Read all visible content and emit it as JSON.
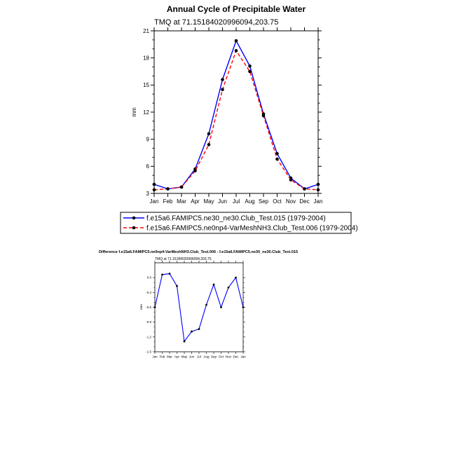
{
  "chart_data": [
    {
      "type": "line",
      "title": "Annual Cycle of Precipitable Water",
      "subtitle": "TMQ at 71.15184020996094,203.75",
      "ylabel": "mm",
      "xlabel": "",
      "categories": [
        "Jan",
        "Feb",
        "Mar",
        "Apr",
        "May",
        "Jun",
        "Jul",
        "Aug",
        "Sep",
        "Oct",
        "Nov",
        "Dec",
        "Jan"
      ],
      "ylim": [
        3,
        21
      ],
      "yticks": [
        3,
        6,
        9,
        12,
        15,
        18,
        21
      ],
      "ytick_labels": [
        "3",
        "6",
        "9",
        "12",
        "15",
        "18",
        "21"
      ],
      "grid": false,
      "legend_position": "bottom",
      "series": [
        {
          "name": "f.e15a6.FAMIPC5.ne30_ne30.Club_Test.015 (1979-2004)",
          "color": "#0000ff",
          "dash": "solid",
          "values": [
            4.0,
            3.5,
            3.7,
            5.7,
            9.6,
            15.6,
            19.9,
            17.1,
            11.8,
            7.4,
            4.7,
            3.5,
            4.0
          ]
        },
        {
          "name": "f.e15a6.FAMIPC5.ne0np4-VarMeshNH3.Club_Test.006 (1979-2004)",
          "color": "#ff0000",
          "dash": "dashed",
          "values": [
            3.4,
            3.5,
            3.7,
            5.5,
            8.4,
            14.5,
            18.8,
            16.5,
            11.6,
            6.8,
            4.5,
            3.5,
            3.4
          ]
        }
      ]
    },
    {
      "type": "line",
      "title": "Difference f.e15a6.FAMIPC5.ne0np4-VarMeshNH3.Club_Test.006 - f.e15a6.FAMIPC5.ne30_ne30.Club_Test.015",
      "subtitle": "TMQ at 71.15184020996094,203.75",
      "ylabel": "mm",
      "xlabel": "",
      "categories": [
        "Jan",
        "Feb",
        "Mar",
        "Apr",
        "May",
        "Jun",
        "Jul",
        "Aug",
        "Sep",
        "Oct",
        "Nov",
        "Dec",
        "Jan"
      ],
      "ylim": [
        -1.5,
        0.3
      ],
      "yticks": [
        -1.5,
        -1.2,
        -0.9,
        -0.6,
        -0.3,
        0.0
      ],
      "ytick_labels": [
        "-1.5",
        "-1.2",
        "-0.9",
        "-0.6",
        "-0.3",
        "0.0"
      ],
      "grid": false,
      "series": [
        {
          "color": "#0000ff",
          "dash": "solid",
          "values": [
            -0.6,
            0.06,
            0.08,
            -0.17,
            -1.29,
            -1.09,
            -1.04,
            -0.55,
            -0.14,
            -0.6,
            -0.2,
            0.0,
            -0.6
          ]
        }
      ]
    }
  ]
}
